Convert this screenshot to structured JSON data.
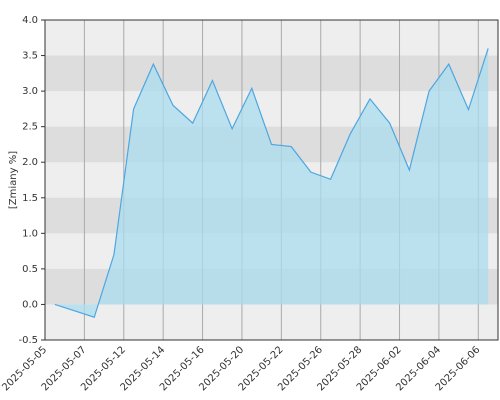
{
  "chart_data": {
    "type": "area",
    "y_label": "[Zmiany %]",
    "categories": [
      "2025-05-05",
      null,
      "2025-05-07",
      null,
      "2025-05-12",
      null,
      "2025-05-14",
      null,
      "2025-05-16",
      null,
      "2025-05-20",
      null,
      "2025-05-22",
      null,
      "2025-05-26",
      null,
      "2025-05-28",
      null,
      "2025-06-02",
      null,
      "2025-06-04",
      null,
      "2025-06-06"
    ],
    "values": [
      0.0,
      -0.09,
      -0.18,
      0.7,
      2.75,
      3.38,
      2.8,
      2.55,
      3.15,
      2.47,
      3.04,
      2.25,
      2.22,
      1.86,
      1.76,
      2.4,
      2.89,
      2.55,
      1.89,
      3.0,
      3.38,
      2.74,
      3.6
    ],
    "color": "#4da6e0",
    "fill_color": "#a9dcef",
    "ylim": [
      -0.5,
      4
    ],
    "yticks": [
      -0.5,
      {
        "value": 0,
        "label": "0.0"
      },
      0.5,
      {
        "value": 1,
        "label": "1.0"
      },
      1.5,
      {
        "value": 2,
        "label": "2.0"
      },
      2.5,
      {
        "value": 3,
        "label": "3.0"
      },
      3.5,
      {
        "value": 4,
        "label": "4.0"
      }
    ],
    "grid": true
  }
}
